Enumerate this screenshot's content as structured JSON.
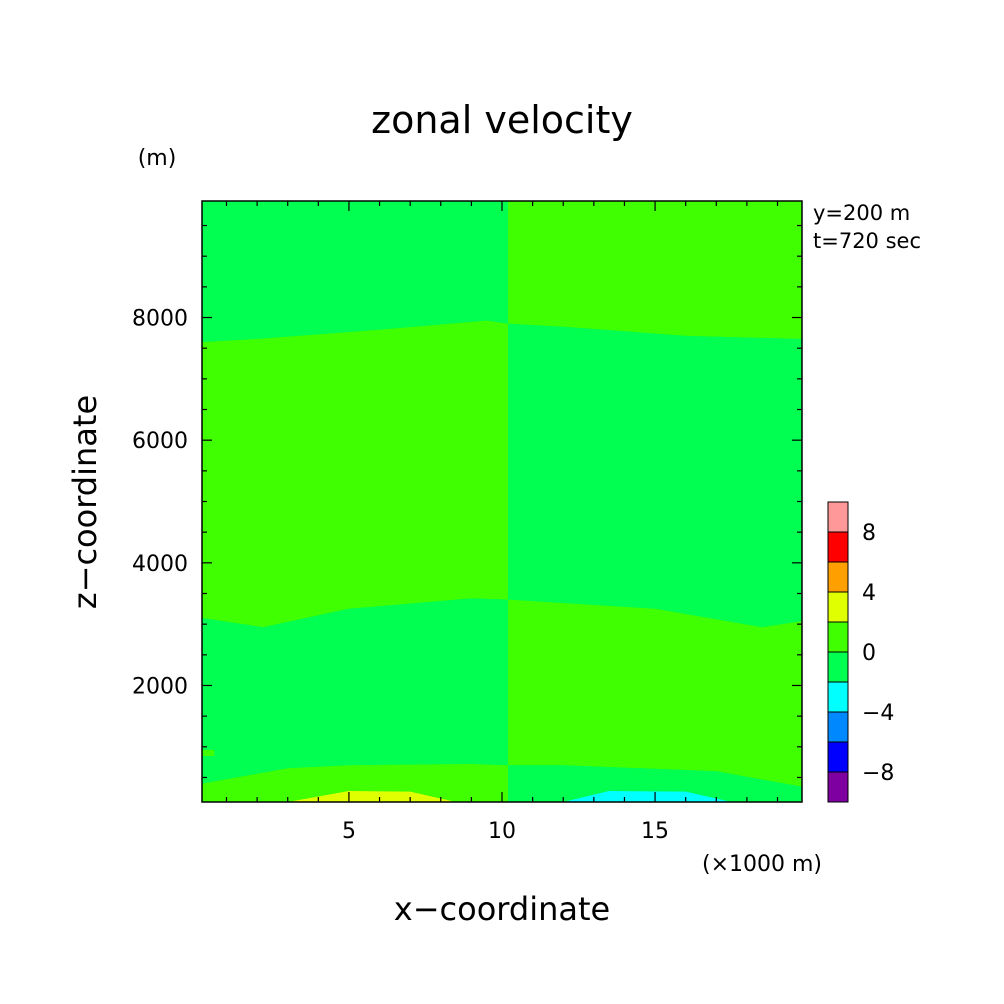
{
  "chart_data": {
    "type": "heatmap",
    "title": "zonal velocity",
    "xlabel": "x−coordinate",
    "ylabel": "z−coordinate",
    "x_unit": "(×1000 m)",
    "y_unit": "(m)",
    "annotations": [
      "y=200 m",
      "t=720 sec"
    ],
    "xlim": [
      0.2,
      19.8
    ],
    "ylim": [
      100,
      9900
    ],
    "x_ticks": [
      5,
      10,
      15
    ],
    "x_tick_labels": [
      "5",
      "10",
      "15"
    ],
    "y_ticks": [
      2000,
      4000,
      6000,
      8000
    ],
    "y_tick_labels": [
      "2000",
      "4000",
      "6000",
      "8000"
    ],
    "colorbar": {
      "levels": [
        -10,
        -8,
        -6,
        -4,
        -2,
        0,
        2,
        4,
        6,
        8,
        10
      ],
      "tick_values": [
        -8,
        -4,
        0,
        4,
        8
      ],
      "tick_labels": [
        "−8",
        "−4",
        "0",
        "4",
        "8"
      ],
      "colors": [
        "#7f00a0",
        "#0000ff",
        "#0088ff",
        "#00ffff",
        "#00ff50",
        "#40ff00",
        "#e0ff00",
        "#ffa000",
        "#ff0000",
        "#ff9999"
      ]
    },
    "regions": [
      {
        "range": "-2 to 0",
        "color": "#00ff50",
        "boundary": [
          [
            0.2,
            9900
          ],
          [
            10.2,
            9900
          ],
          [
            10.2,
            7900
          ],
          [
            9.5,
            7950
          ],
          [
            6,
            7800
          ],
          [
            2,
            7650
          ],
          [
            0.2,
            7600
          ]
        ]
      },
      {
        "range": "0 to 2",
        "color": "#40ff00",
        "boundary": [
          [
            10.2,
            9900
          ],
          [
            19.8,
            9900
          ],
          [
            19.8,
            7650
          ],
          [
            16,
            7700
          ],
          [
            12,
            7850
          ],
          [
            10.2,
            7900
          ]
        ]
      },
      {
        "range": "0 to 2",
        "color": "#40ff00",
        "boundary": [
          [
            0.2,
            7600
          ],
          [
            2,
            7650
          ],
          [
            6,
            7800
          ],
          [
            9.5,
            7950
          ],
          [
            10.2,
            7900
          ],
          [
            10.2,
            3400
          ],
          [
            9,
            3420
          ],
          [
            5,
            3250
          ],
          [
            2.2,
            2950
          ],
          [
            0.2,
            3100
          ]
        ]
      },
      {
        "range": "-2 to 0",
        "color": "#00ff50",
        "boundary": [
          [
            10.2,
            7900
          ],
          [
            12,
            7850
          ],
          [
            16,
            7700
          ],
          [
            19.8,
            7650
          ],
          [
            19.8,
            3050
          ],
          [
            18.5,
            2950
          ],
          [
            15,
            3250
          ],
          [
            10.2,
            3400
          ]
        ]
      },
      {
        "range": "-2 to 0",
        "color": "#00ff50",
        "boundary": [
          [
            0.2,
            3100
          ],
          [
            2.2,
            2950
          ],
          [
            5,
            3250
          ],
          [
            9,
            3420
          ],
          [
            10.2,
            3400
          ],
          [
            10.2,
            700
          ],
          [
            9,
            720
          ],
          [
            5,
            700
          ],
          [
            3,
            650
          ],
          [
            0.2,
            400
          ]
        ]
      },
      {
        "range": "0 to 2",
        "color": "#40ff00",
        "boundary": [
          [
            10.2,
            3400
          ],
          [
            15,
            3250
          ],
          [
            18.5,
            2950
          ],
          [
            19.8,
            3050
          ],
          [
            19.8,
            350
          ],
          [
            17,
            600
          ],
          [
            12,
            700
          ],
          [
            10.2,
            700
          ]
        ]
      },
      {
        "range": "0 to 2",
        "color": "#40ff00",
        "boundary": [
          [
            0.2,
            400
          ],
          [
            3,
            650
          ],
          [
            5,
            700
          ],
          [
            9,
            720
          ],
          [
            10.2,
            700
          ],
          [
            10.2,
            100
          ],
          [
            0.2,
            100
          ]
        ]
      },
      {
        "range": "-2 to 0",
        "color": "#00ff50",
        "boundary": [
          [
            10.2,
            700
          ],
          [
            12,
            700
          ],
          [
            17,
            600
          ],
          [
            19.8,
            350
          ],
          [
            19.8,
            100
          ],
          [
            10.2,
            100
          ]
        ]
      },
      {
        "range": "2 to 4",
        "color": "#e0ff00",
        "boundary": [
          [
            3,
            100
          ],
          [
            5,
            280
          ],
          [
            7,
            270
          ],
          [
            8.5,
            100
          ]
        ]
      },
      {
        "range": "-4 to -2",
        "color": "#00ffff",
        "boundary": [
          [
            12,
            100
          ],
          [
            13.5,
            280
          ],
          [
            16,
            270
          ],
          [
            17.5,
            100
          ]
        ]
      },
      {
        "range": "0 to 2",
        "color": "#40ff00",
        "boundary": [
          [
            0.2,
            950
          ],
          [
            0.6,
            950
          ],
          [
            0.6,
            850
          ],
          [
            0.2,
            850
          ]
        ]
      }
    ]
  }
}
